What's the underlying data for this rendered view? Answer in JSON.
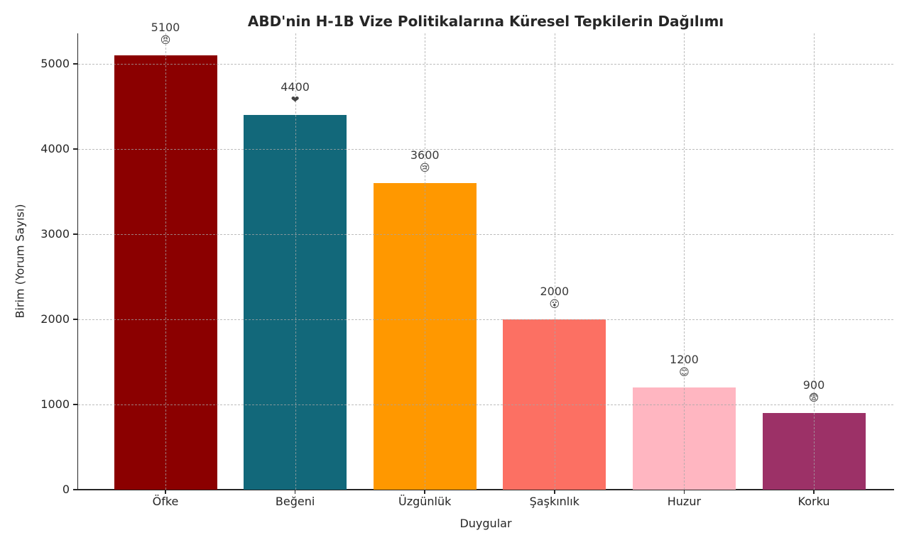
{
  "chart_data": {
    "type": "bar",
    "title": "ABD'nin H-1B Vize Politikalarına Küresel Tepkilerin Dağılımı",
    "xlabel": "Duygular",
    "ylabel": "Birim (Yorum Sayısı)",
    "categories": [
      "Öfke",
      "Beğeni",
      "Üzgünlük",
      "Şaşkınlık",
      "Huzur",
      "Korku"
    ],
    "values": [
      5100,
      4400,
      3600,
      2000,
      1200,
      900
    ],
    "value_labels": [
      "5100",
      "4400",
      "3600",
      "2000",
      "1200",
      "900"
    ],
    "emoji_markers": [
      "😠",
      "❤",
      "😢",
      "😮",
      "😊",
      "😨"
    ],
    "bar_colors": [
      "#8B0000",
      "#12687A",
      "#FF9800",
      "#FC7063",
      "#FFB6C1",
      "#9C3167"
    ],
    "yticks": [
      0,
      1000,
      2000,
      3000,
      4000,
      5000
    ],
    "ytick_labels": [
      "0",
      "1000",
      "2000",
      "3000",
      "4000",
      "5000"
    ],
    "ylim": [
      0,
      5360
    ],
    "grid": "dashed gridlines on both axes",
    "legend": "none",
    "background_color": "#ffffff",
    "spine_color": "#262626"
  }
}
